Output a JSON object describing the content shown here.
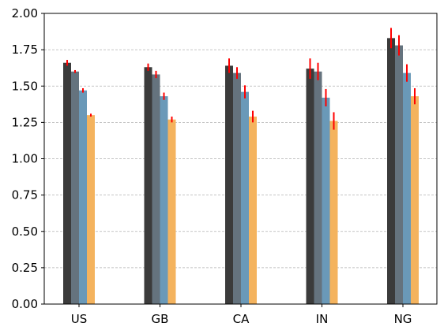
{
  "chart_data": {
    "type": "bar",
    "categories": [
      "US",
      "GB",
      "CA",
      "IN",
      "NG"
    ],
    "series": [
      {
        "color": "#3b3b3b",
        "values": [
          1.66,
          1.63,
          1.64,
          1.62,
          1.83
        ],
        "errors": [
          0.02,
          0.025,
          0.05,
          0.07,
          0.07
        ]
      },
      {
        "color": "#65737e",
        "values": [
          1.6,
          1.58,
          1.59,
          1.6,
          1.78
        ],
        "errors": [
          0.01,
          0.025,
          0.04,
          0.06,
          0.07
        ]
      },
      {
        "color": "#6a99b8",
        "values": [
          1.47,
          1.43,
          1.46,
          1.42,
          1.59
        ],
        "errors": [
          0.015,
          0.025,
          0.045,
          0.06,
          0.06
        ]
      },
      {
        "color": "#f4b35e",
        "values": [
          1.3,
          1.27,
          1.29,
          1.26,
          1.43
        ],
        "errors": [
          0.01,
          0.02,
          0.04,
          0.06,
          0.055
        ]
      }
    ],
    "error_bar_color": "#ff0000",
    "ylim": [
      0,
      2.0
    ],
    "yticks": [
      "0.00",
      "0.25",
      "0.50",
      "0.75",
      "1.00",
      "1.25",
      "1.50",
      "1.75",
      "2.00"
    ],
    "ytick_values": [
      0,
      0.25,
      0.5,
      0.75,
      1.0,
      1.25,
      1.5,
      1.75,
      2.0
    ],
    "grid": "horizontal-dashed",
    "title": "",
    "xlabel": "",
    "ylabel": ""
  }
}
